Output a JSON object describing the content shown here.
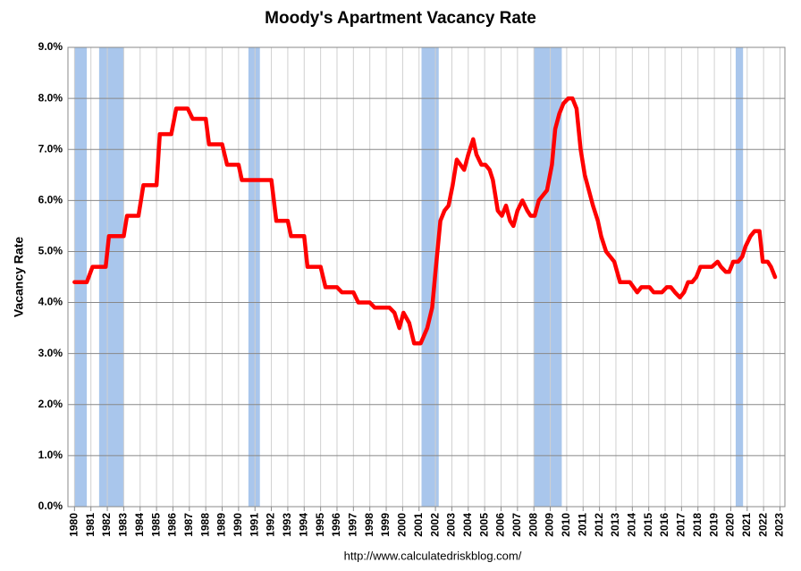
{
  "chart_data": {
    "type": "line",
    "title": "Moody's Apartment Vacancy Rate",
    "y_label": "Vacancy Rate",
    "source": "http://www.calculatedriskblog.com/",
    "x": [
      1980,
      1980.75,
      1981.1,
      1981.9,
      1982.1,
      1983.0,
      1983.2,
      1983.9,
      1984.2,
      1985.0,
      1985.2,
      1985.9,
      1986.2,
      1986.9,
      1987.2,
      1988.0,
      1988.2,
      1989.0,
      1989.3,
      1990.0,
      1990.2,
      1992.0,
      1992.3,
      1993.0,
      1993.2,
      1994.0,
      1994.2,
      1995.0,
      1995.3,
      1996.0,
      1996.3,
      1997.0,
      1997.3,
      1998.0,
      1998.3,
      1999.2,
      1999.5,
      1999.8,
      2000.05,
      2000.4,
      2000.7,
      2001.1,
      2001.5,
      2001.8,
      2002.0,
      2002.3,
      2002.55,
      2002.8,
      2003.05,
      2003.3,
      2003.75,
      2004.0,
      2004.3,
      2004.5,
      2004.8,
      2005.05,
      2005.3,
      2005.5,
      2005.8,
      2006.05,
      2006.3,
      2006.55,
      2006.75,
      2007.0,
      2007.3,
      2007.6,
      2007.8,
      2008.05,
      2008.3,
      2008.55,
      2008.8,
      2009.1,
      2009.3,
      2009.55,
      2009.8,
      2010.1,
      2010.35,
      2010.6,
      2010.85,
      2011.1,
      2011.35,
      2011.6,
      2011.9,
      2012.1,
      2012.4,
      2012.9,
      2013.25,
      2013.85,
      2014.3,
      2014.55,
      2015.05,
      2015.3,
      2015.8,
      2016.1,
      2016.35,
      2016.6,
      2016.9,
      2017.15,
      2017.4,
      2017.65,
      2017.9,
      2018.15,
      2018.85,
      2019.2,
      2019.4,
      2019.7,
      2019.9,
      2020.15,
      2020.45,
      2020.7,
      2020.9,
      2021.2,
      2021.45,
      2021.75,
      2021.95,
      2022.25,
      2022.45,
      2022.7
    ],
    "series": [
      {
        "name": "Vacancy Rate",
        "color": "#ff0000",
        "values": [
          4.4,
          4.4,
          4.7,
          4.7,
          5.3,
          5.3,
          5.7,
          5.7,
          6.3,
          6.3,
          7.3,
          7.3,
          7.8,
          7.8,
          7.6,
          7.6,
          7.1,
          7.1,
          6.7,
          6.7,
          6.4,
          6.4,
          5.6,
          5.6,
          5.3,
          5.3,
          4.7,
          4.7,
          4.3,
          4.3,
          4.2,
          4.2,
          4.0,
          4.0,
          3.9,
          3.9,
          3.8,
          3.5,
          3.8,
          3.6,
          3.2,
          3.2,
          3.5,
          3.9,
          4.6,
          5.6,
          5.8,
          5.9,
          6.3,
          6.8,
          6.6,
          6.9,
          7.2,
          6.9,
          6.7,
          6.7,
          6.6,
          6.4,
          5.8,
          5.7,
          5.9,
          5.6,
          5.5,
          5.8,
          6.0,
          5.8,
          5.7,
          5.7,
          6.0,
          6.1,
          6.2,
          6.7,
          7.4,
          7.7,
          7.9,
          8.0,
          8.0,
          7.8,
          7.0,
          6.5,
          6.2,
          5.9,
          5.6,
          5.3,
          5.0,
          4.8,
          4.4,
          4.4,
          4.2,
          4.3,
          4.3,
          4.2,
          4.2,
          4.3,
          4.3,
          4.2,
          4.1,
          4.2,
          4.4,
          4.4,
          4.5,
          4.7,
          4.7,
          4.8,
          4.7,
          4.6,
          4.6,
          4.8,
          4.8,
          4.9,
          5.1,
          5.3,
          5.4,
          5.4,
          4.8,
          4.8,
          4.7,
          4.5
        ]
      }
    ],
    "recessions": [
      [
        1980.0,
        1980.75
      ],
      [
        1981.5,
        1983.0
      ],
      [
        1990.6,
        1991.3
      ],
      [
        2001.15,
        2002.2
      ],
      [
        2008.0,
        2009.7
      ],
      [
        2020.3,
        2020.75
      ]
    ],
    "recession_color": "#a9c6ec",
    "xlim": [
      1979.6,
      2023.3
    ],
    "xticks": [
      1980,
      1981,
      1982,
      1983,
      1984,
      1985,
      1986,
      1987,
      1988,
      1989,
      1990,
      1991,
      1992,
      1993,
      1994,
      1995,
      1996,
      1997,
      1998,
      1999,
      2000,
      2001,
      2002,
      2003,
      2004,
      2005,
      2006,
      2007,
      2008,
      2009,
      2010,
      2011,
      2012,
      2013,
      2014,
      2015,
      2016,
      2017,
      2018,
      2019,
      2020,
      2021,
      2022,
      2023
    ],
    "ylim": [
      0,
      9
    ],
    "yticks": [
      {
        "value": 0,
        "label": "0.0%"
      },
      {
        "value": 1,
        "label": "1.0%"
      },
      {
        "value": 2,
        "label": "2.0%"
      },
      {
        "value": 3,
        "label": "3.0%"
      },
      {
        "value": 4,
        "label": "4.0%"
      },
      {
        "value": 5,
        "label": "5.0%"
      },
      {
        "value": 6,
        "label": "6.0%"
      },
      {
        "value": 7,
        "label": "7.0%"
      },
      {
        "value": 8,
        "label": "8.0%"
      },
      {
        "value": 9,
        "label": "9.0%"
      }
    ],
    "grid": true
  }
}
